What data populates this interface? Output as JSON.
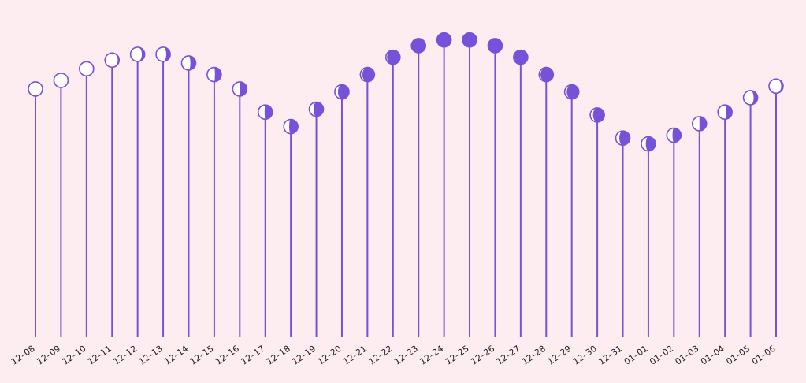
{
  "colors": {
    "background": "#fdedf1",
    "accent": "#7652d9"
  },
  "chart_data": {
    "type": "lollipop",
    "marker": "moon-phase-icon",
    "title": "",
    "xlabel": "",
    "ylabel": "",
    "categories": [
      "12–08",
      "12–09",
      "12–10",
      "12–11",
      "12–12",
      "12–13",
      "12–14",
      "12–15",
      "12–16",
      "12–17",
      "12–18",
      "12–19",
      "12–20",
      "12–21",
      "12–22",
      "12–23",
      "12–24",
      "12–25",
      "12–26",
      "12–27",
      "12–28",
      "12–29",
      "12–30",
      "12–31",
      "01–01",
      "01–02",
      "01–03",
      "01–04",
      "01–05",
      "01–06"
    ],
    "values": [
      0.86,
      0.89,
      0.93,
      0.96,
      0.98,
      0.98,
      0.95,
      0.91,
      0.86,
      0.78,
      0.73,
      0.79,
      0.85,
      0.91,
      0.97,
      1.01,
      1.03,
      1.03,
      1.01,
      0.97,
      0.91,
      0.85,
      0.77,
      0.69,
      0.67,
      0.7,
      0.74,
      0.78,
      0.83,
      0.87
    ],
    "phase": [
      0.0,
      0.02,
      0.05,
      0.1,
      0.2,
      0.28,
      0.38,
      0.45,
      0.5,
      0.55,
      0.62,
      0.7,
      0.78,
      0.86,
      0.92,
      0.97,
      1.0,
      1.0,
      0.98,
      0.95,
      0.9,
      0.85,
      0.8,
      0.75,
      0.68,
      0.6,
      0.5,
      0.4,
      0.28,
      0.14
    ],
    "ylim": [
      0,
      1.1
    ],
    "grid": false,
    "legend": "none"
  }
}
